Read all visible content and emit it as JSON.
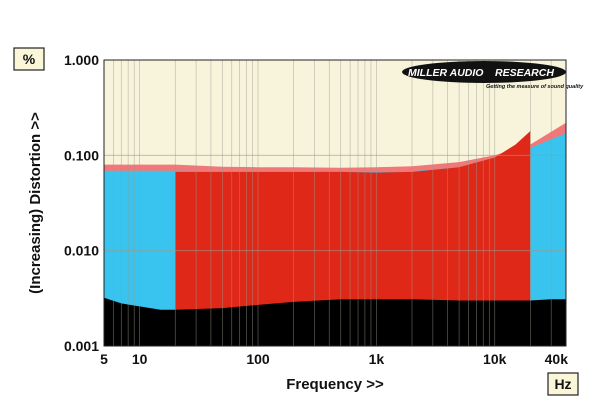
{
  "chart_data": {
    "type": "area",
    "xscale": "log",
    "yscale": "log",
    "xlim": [
      5,
      40000
    ],
    "ylim": [
      0.001,
      1.0
    ],
    "xlabel": "Frequency >>",
    "ylabel": "(Increasing) Distortion >>",
    "x_unit": "Hz",
    "y_unit": "%",
    "x_tick_labels": [
      "5",
      "10",
      "100",
      "1k",
      "10k",
      "40k"
    ],
    "x_tick_values": [
      5,
      10,
      100,
      1000,
      10000,
      40000
    ],
    "y_tick_labels": [
      "0.001",
      "0.010",
      "0.100",
      "1.000"
    ],
    "y_tick_values": [
      0.001,
      0.01,
      0.1,
      1.0
    ],
    "grid": true,
    "background_color": "#f8f4dc",
    "logo": {
      "name": "MILLER AUDIO RESEARCH",
      "word1": "MILLER AUDIO",
      "word2": "RESEARCH",
      "tagline": "Getting the measure of sound quality"
    },
    "series": [
      {
        "color": "#f07878",
        "x": [
          5,
          10,
          20,
          50,
          100,
          200,
          500,
          1000,
          2000,
          5000,
          10000,
          20000,
          40000
        ],
        "y": [
          0.08,
          0.08,
          0.08,
          0.076,
          0.075,
          0.075,
          0.074,
          0.075,
          0.077,
          0.085,
          0.1,
          0.13,
          0.22
        ]
      },
      {
        "color": "#38c4ee",
        "x": [
          5,
          10,
          20,
          50,
          100,
          200,
          500,
          1000,
          2000,
          5000,
          10000,
          20000,
          40000
        ],
        "y": [
          0.069,
          0.069,
          0.069,
          0.068,
          0.068,
          0.068,
          0.067,
          0.067,
          0.068,
          0.075,
          0.09,
          0.12,
          0.17
        ]
      },
      {
        "color": "#e02818",
        "x": [
          20,
          50,
          100,
          200,
          500,
          1000,
          2000,
          5000,
          10000,
          15000,
          20000
        ],
        "y": [
          0.067,
          0.067,
          0.067,
          0.067,
          0.067,
          0.066,
          0.067,
          0.075,
          0.095,
          0.13,
          0.18
        ]
      },
      {
        "color": "#000000",
        "x": [
          5,
          7,
          10,
          15,
          20,
          50,
          100,
          200,
          500,
          1000,
          2000,
          5000,
          10000,
          20000,
          30000,
          40000
        ],
        "y": [
          0.0032,
          0.0028,
          0.0026,
          0.0024,
          0.0024,
          0.0025,
          0.0027,
          0.0029,
          0.0031,
          0.0031,
          0.0031,
          0.003,
          0.003,
          0.003,
          0.0031,
          0.0031
        ]
      }
    ]
  }
}
